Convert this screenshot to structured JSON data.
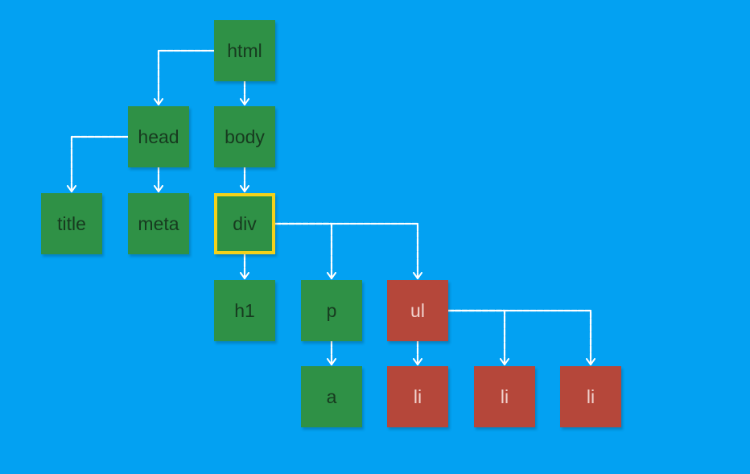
{
  "colors": {
    "background": "#03a1f2",
    "node_default": "#2f9146",
    "node_alt": "#b5473a",
    "text_default": "#173a1f",
    "text_alt": "#f1d3ce",
    "highlight": "#f4d21a",
    "edge": "#ffffff"
  },
  "diagram": {
    "nodes": [
      {
        "id": "html",
        "label": "html",
        "style": "default"
      },
      {
        "id": "head",
        "label": "head",
        "style": "default"
      },
      {
        "id": "body",
        "label": "body",
        "style": "default"
      },
      {
        "id": "title",
        "label": "title",
        "style": "default"
      },
      {
        "id": "meta",
        "label": "meta",
        "style": "default"
      },
      {
        "id": "div",
        "label": "div",
        "style": "default",
        "highlighted": true
      },
      {
        "id": "h1",
        "label": "h1",
        "style": "default"
      },
      {
        "id": "p",
        "label": "p",
        "style": "default"
      },
      {
        "id": "ul",
        "label": "ul",
        "style": "alt"
      },
      {
        "id": "a",
        "label": "a",
        "style": "default"
      },
      {
        "id": "li1",
        "label": "li",
        "style": "alt"
      },
      {
        "id": "li2",
        "label": "li",
        "style": "alt"
      },
      {
        "id": "li3",
        "label": "li",
        "style": "alt"
      }
    ],
    "edges": [
      {
        "from": "html",
        "to": "head"
      },
      {
        "from": "html",
        "to": "body"
      },
      {
        "from": "head",
        "to": "title"
      },
      {
        "from": "head",
        "to": "meta"
      },
      {
        "from": "body",
        "to": "div"
      },
      {
        "from": "div",
        "to": "h1"
      },
      {
        "from": "div",
        "to": "p"
      },
      {
        "from": "div",
        "to": "ul"
      },
      {
        "from": "p",
        "to": "a"
      },
      {
        "from": "ul",
        "to": "li1"
      },
      {
        "from": "ul",
        "to": "li2"
      },
      {
        "from": "ul",
        "to": "li3"
      }
    ]
  }
}
